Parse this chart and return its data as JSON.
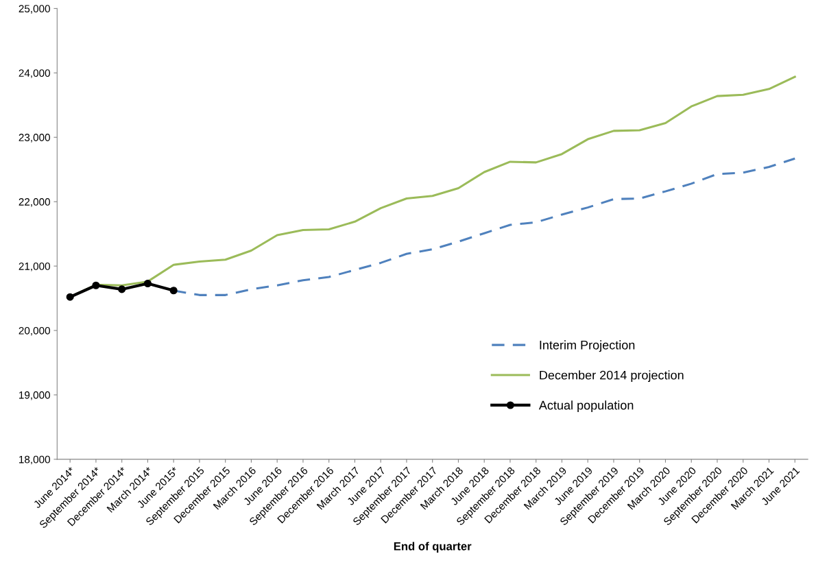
{
  "chart_data": {
    "type": "line",
    "xlabel": "End of quarter",
    "categories": [
      "June 2014*",
      "September 2014*",
      "December 2014*",
      "March 2014*",
      "June 2015*",
      "September 2015",
      "December 2015",
      "March 2016",
      "June 2016",
      "September 2016",
      "December 2016",
      "March 2017",
      "June 2017",
      "September 2017",
      "December 2017",
      "March 2018",
      "June 2018",
      "September 2018",
      "December 2018",
      "March 2019",
      "June 2019",
      "September 2019",
      "December 2019",
      "March 2020",
      "June 2020",
      "September 2020",
      "December 2020",
      "March 2021",
      "June 2021"
    ],
    "series": [
      {
        "name": "Interim Projection",
        "color": "#4f81bd",
        "line_style": "dashed",
        "marker": "none",
        "values": [
          null,
          null,
          null,
          null,
          20620,
          20550,
          20550,
          20640,
          20700,
          20780,
          20830,
          20940,
          21050,
          21190,
          21260,
          21380,
          21510,
          21640,
          21680,
          21800,
          21910,
          22040,
          22050,
          22160,
          22280,
          22430,
          22450,
          22540,
          22670
        ]
      },
      {
        "name": "December 2014 projection",
        "color": "#9bbb59",
        "line_style": "solid",
        "marker": "none",
        "values": [
          20520,
          20710,
          20700,
          20760,
          21020,
          21070,
          21100,
          21240,
          21480,
          21560,
          21570,
          21690,
          21900,
          22050,
          22090,
          22210,
          22460,
          22620,
          22610,
          22740,
          22970,
          23100,
          23110,
          23220,
          23480,
          23640,
          23660,
          23750,
          23940
        ]
      },
      {
        "name": "Actual population",
        "color": "#000000",
        "line_style": "solid",
        "marker": "circle",
        "values": [
          20520,
          20700,
          20640,
          20730,
          20620,
          null,
          null,
          null,
          null,
          null,
          null,
          null,
          null,
          null,
          null,
          null,
          null,
          null,
          null,
          null,
          null,
          null,
          null,
          null,
          null,
          null,
          null,
          null,
          null
        ]
      }
    ],
    "ylim": [
      18000,
      25000
    ],
    "yticks": [
      {
        "value": 18000,
        "label": "18,000"
      },
      {
        "value": 19000,
        "label": "19,000"
      },
      {
        "value": 20000,
        "label": "20,000"
      },
      {
        "value": 21000,
        "label": "21,000"
      },
      {
        "value": 22000,
        "label": "22,000"
      },
      {
        "value": 23000,
        "label": "23,000"
      },
      {
        "value": 24000,
        "label": "24,000"
      },
      {
        "value": 25000,
        "label": "25,000"
      }
    ],
    "grid": false,
    "legend": "lower right"
  }
}
